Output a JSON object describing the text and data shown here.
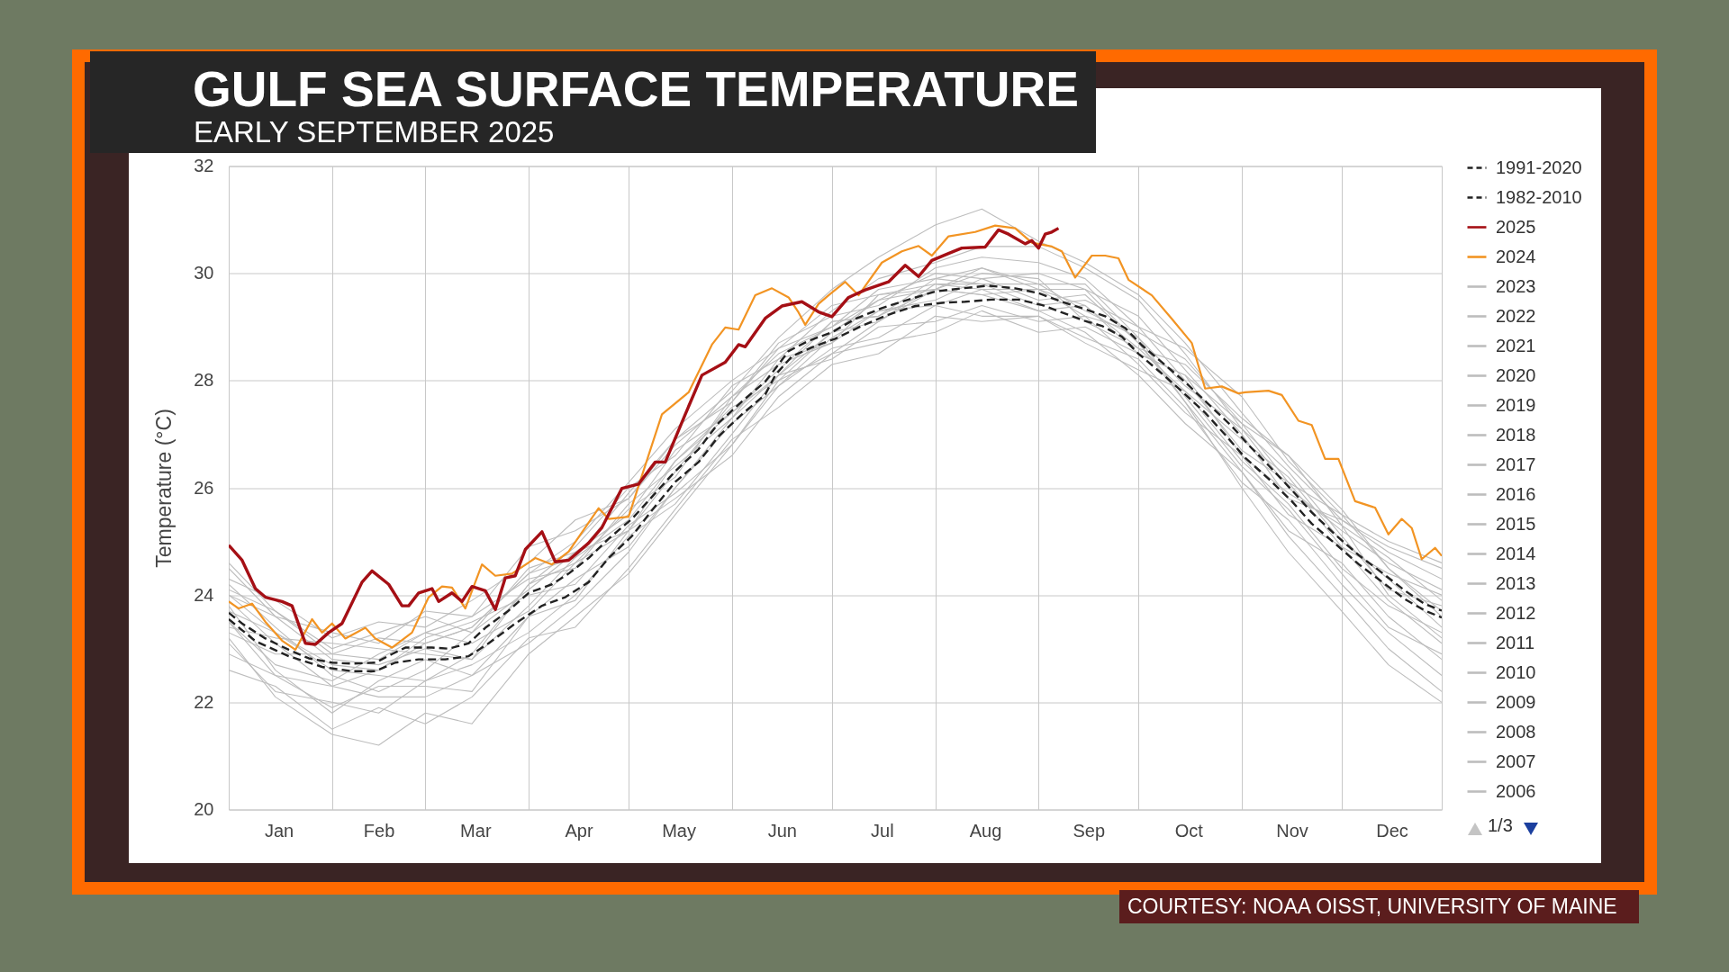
{
  "chart_data": {
    "type": "line",
    "title": "GULF SEA SURFACE TEMPERATURE",
    "subtitle": "EARLY SEPTEMBER 2025",
    "ylabel": "Temperature (°C)",
    "annotations": [
      "1/3",
      "COURTESY: NOAA OISST, UNIVERSITY OF MAINE"
    ],
    "x": [
      "--01-01",
      "--01-15",
      "--02-01",
      "--02-15",
      "--03-01",
      "--03-15",
      "--04-01",
      "--04-15",
      "--05-01",
      "--05-15",
      "--06-01",
      "--06-15",
      "--07-01",
      "--07-15",
      "--08-01",
      "--08-15",
      "--09-01",
      "--09-15",
      "--10-01",
      "--10-15",
      "--11-01",
      "--11-15",
      "--12-01",
      "--12-15",
      "--12-31"
    ],
    "xlim": [
      "--01-01",
      "--12-31"
    ],
    "xticks": [
      {
        "value": "--01-16",
        "label": "Jan"
      },
      {
        "value": "--02-01",
        "label": null
      },
      {
        "value": "--02-15",
        "label": "Feb"
      },
      {
        "value": "--03-01",
        "label": null
      },
      {
        "value": "--03-16",
        "label": "Mar"
      },
      {
        "value": "--04-01",
        "label": null
      },
      {
        "value": "--04-16",
        "label": "Apr"
      },
      {
        "value": "--05-01",
        "label": null
      },
      {
        "value": "--05-16",
        "label": "May"
      },
      {
        "value": "--06-01",
        "label": null
      },
      {
        "value": "--06-16",
        "label": "Jun"
      },
      {
        "value": "--07-01",
        "label": null
      },
      {
        "value": "--07-16",
        "label": "Jul"
      },
      {
        "value": "--08-01",
        "label": null
      },
      {
        "value": "--08-16",
        "label": "Aug"
      },
      {
        "value": "--09-01",
        "label": null
      },
      {
        "value": "--09-16",
        "label": "Sep"
      },
      {
        "value": "--10-01",
        "label": null
      },
      {
        "value": "--10-16",
        "label": "Oct"
      },
      {
        "value": "--11-01",
        "label": null
      },
      {
        "value": "--11-16",
        "label": "Nov"
      },
      {
        "value": "--12-01",
        "label": null
      },
      {
        "value": "--12-16",
        "label": "Dec"
      }
    ],
    "ylim": [
      20,
      32
    ],
    "yticks": [
      20,
      22,
      24,
      26,
      28,
      30,
      32
    ],
    "grid": true,
    "legend": "right",
    "series": [
      {
        "name": "1991-2020",
        "color": "#222222",
        "line_style": "dashed",
        "x": [
          "--01-01",
          "--01-05",
          "--01-12",
          "--01-19",
          "--01-25",
          "--02-01",
          "--02-07",
          "--02-14",
          "--02-19",
          "--02-23",
          "--03-03",
          "--03-08",
          "--03-14",
          "--03-19",
          "--03-26",
          "--04-01",
          "--04-08",
          "--04-13",
          "--04-19",
          "--04-25",
          "--05-02",
          "--05-08",
          "--05-15",
          "--05-22",
          "--05-28",
          "--06-04",
          "--06-11",
          "--06-15",
          "--06-18",
          "--06-24",
          "--07-01",
          "--07-08",
          "--07-16",
          "--07-24",
          "--08-01",
          "--08-09",
          "--08-17",
          "--08-25",
          "--09-01",
          "--09-08",
          "--09-16",
          "--09-21",
          "--09-27",
          "--10-02",
          "--10-09",
          "--10-15",
          "--10-22",
          "--10-29",
          "--11-03",
          "--11-09",
          "--11-16",
          "--11-22",
          "--11-29",
          "--12-06",
          "--12-13",
          "--12-20",
          "--12-26",
          "--12-31"
        ],
        "values": [
          23.67,
          23.47,
          23.19,
          22.98,
          22.82,
          22.74,
          22.72,
          22.74,
          22.9,
          23.02,
          23.02,
          23.0,
          23.1,
          23.39,
          23.71,
          24.04,
          24.2,
          24.4,
          24.69,
          25.05,
          25.42,
          25.83,
          26.31,
          26.72,
          27.21,
          27.61,
          27.98,
          28.3,
          28.55,
          28.74,
          28.9,
          29.15,
          29.35,
          29.51,
          29.66,
          29.72,
          29.77,
          29.72,
          29.63,
          29.47,
          29.31,
          29.2,
          28.98,
          28.66,
          28.29,
          27.97,
          27.56,
          27.15,
          26.8,
          26.42,
          25.96,
          25.54,
          25.13,
          24.75,
          24.42,
          24.08,
          23.83,
          23.71
        ]
      },
      {
        "name": "1982-2010",
        "color": "#222222",
        "line_style": "dashed",
        "x": [
          "--01-01",
          "--01-09",
          "--01-19",
          "--01-29",
          "--02-07",
          "--02-14",
          "--02-20",
          "--02-27",
          "--03-07",
          "--03-14",
          "--03-20",
          "--03-28",
          "--04-05",
          "--04-12",
          "--04-19",
          "--04-25",
          "--05-02",
          "--05-08",
          "--05-15",
          "--05-22",
          "--05-28",
          "--06-04",
          "--06-11",
          "--06-14",
          "--06-19",
          "--06-25",
          "--07-02",
          "--07-10",
          "--07-18",
          "--07-26",
          "--08-03",
          "--08-10",
          "--08-18",
          "--08-26",
          "--09-02",
          "--09-08",
          "--09-15",
          "--09-20",
          "--09-26",
          "--10-01",
          "--10-08",
          "--10-14",
          "--10-21",
          "--10-27",
          "--11-02",
          "--11-09",
          "--11-16",
          "--11-22",
          "--11-29",
          "--12-06",
          "--12-13",
          "--12-20",
          "--12-26",
          "--12-31"
        ],
        "values": [
          23.55,
          23.14,
          22.86,
          22.66,
          22.58,
          22.58,
          22.74,
          22.8,
          22.8,
          22.86,
          23.1,
          23.47,
          23.8,
          23.96,
          24.24,
          24.69,
          25.1,
          25.58,
          26.11,
          26.48,
          26.96,
          27.37,
          27.74,
          28.1,
          28.45,
          28.62,
          28.78,
          29.02,
          29.23,
          29.39,
          29.45,
          29.47,
          29.51,
          29.51,
          29.41,
          29.27,
          29.11,
          29.02,
          28.82,
          28.5,
          28.13,
          27.8,
          27.4,
          26.99,
          26.56,
          26.17,
          25.75,
          25.33,
          24.96,
          24.58,
          24.25,
          23.92,
          23.71,
          23.58
        ]
      },
      {
        "name": "2025",
        "color": "#a50f15",
        "x": [
          "--01-01",
          "--01-05",
          "--01-09",
          "--01-12",
          "--01-17",
          "--01-20",
          "--01-24",
          "--01-27",
          "--01-31",
          "--02-04",
          "--02-10",
          "--02-13",
          "--02-18",
          "--02-22",
          "--02-24",
          "--02-27",
          "--03-03",
          "--03-05",
          "--03-09",
          "--03-12",
          "--03-15",
          "--03-19",
          "--03-22",
          "--03-25",
          "--03-28",
          "--03-31",
          "--04-05",
          "--04-09",
          "--04-13",
          "--04-19",
          "--04-23",
          "--04-29",
          "--05-04",
          "--05-09",
          "--05-12",
          "--05-18",
          "--05-23",
          "--05-30",
          "--06-03",
          "--06-05",
          "--06-11",
          "--06-16",
          "--06-22",
          "--06-27",
          "--07-01",
          "--07-06",
          "--07-11",
          "--07-18",
          "--07-23",
          "--07-27",
          "--07-31",
          "--08-05",
          "--08-09",
          "--08-16",
          "--08-20",
          "--08-23",
          "--08-28",
          "--08-30",
          "--09-01",
          "--09-03",
          "--09-05",
          "--09-07"
        ],
        "values": [
          24.93,
          24.65,
          24.12,
          23.96,
          23.88,
          23.8,
          23.1,
          23.08,
          23.3,
          23.47,
          24.24,
          24.45,
          24.2,
          23.8,
          23.8,
          24.04,
          24.12,
          23.88,
          24.04,
          23.88,
          24.16,
          24.08,
          23.73,
          24.32,
          24.36,
          24.85,
          25.18,
          24.62,
          24.65,
          24.97,
          25.26,
          25.99,
          26.07,
          26.48,
          26.48,
          27.37,
          28.1,
          28.34,
          28.67,
          28.63,
          29.16,
          29.39,
          29.47,
          29.28,
          29.19,
          29.55,
          29.69,
          29.84,
          30.15,
          29.94,
          30.24,
          30.37,
          30.47,
          30.49,
          30.81,
          30.73,
          30.55,
          30.61,
          30.47,
          30.73,
          30.77,
          30.84
        ]
      },
      {
        "name": "2024",
        "color": "#f29423",
        "x": [
          "--01-01",
          "--01-04",
          "--01-08",
          "--01-12",
          "--01-17",
          "--01-21",
          "--01-26",
          "--01-29",
          "--02-01",
          "--02-05",
          "--02-11",
          "--02-14",
          "--02-19",
          "--02-25",
          "--03-02",
          "--03-06",
          "--03-09",
          "--03-13",
          "--03-18",
          "--03-22",
          "--03-27",
          "--04-03",
          "--04-08",
          "--04-13",
          "--04-18",
          "--04-22",
          "--04-25",
          "--05-01",
          "--05-05",
          "--05-11",
          "--05-19",
          "--05-26",
          "--05-30",
          "--06-03",
          "--06-08",
          "--06-13",
          "--06-18",
          "--06-21",
          "--06-23",
          "--06-27",
          "--06-30",
          "--07-05",
          "--07-09",
          "--07-16",
          "--07-22",
          "--07-27",
          "--07-31",
          "--08-05",
          "--08-13",
          "--08-19",
          "--08-25",
          "--08-30",
          "--09-05",
          "--09-08",
          "--09-12",
          "--09-17",
          "--09-21",
          "--09-25",
          "--09-28",
          "--10-05",
          "--10-11",
          "--10-17",
          "--10-21",
          "--10-26",
          "--10-31",
          "--11-02",
          "--11-09",
          "--11-13",
          "--11-18",
          "--11-22",
          "--11-26",
          "--11-30",
          "--12-05",
          "--12-11",
          "--12-15",
          "--12-19",
          "--12-22",
          "--12-25",
          "--12-29",
          "--12-31"
        ],
        "values": [
          23.88,
          23.75,
          23.84,
          23.5,
          23.15,
          22.98,
          23.55,
          23.3,
          23.47,
          23.19,
          23.39,
          23.19,
          23.02,
          23.3,
          23.96,
          24.16,
          24.14,
          23.75,
          24.57,
          24.36,
          24.4,
          24.69,
          24.57,
          24.81,
          25.26,
          25.62,
          25.42,
          25.46,
          26.23,
          27.37,
          27.78,
          28.67,
          28.99,
          28.95,
          29.59,
          29.72,
          29.55,
          29.27,
          29.04,
          29.43,
          29.59,
          29.84,
          29.59,
          30.2,
          30.41,
          30.51,
          30.33,
          30.69,
          30.77,
          30.89,
          30.84,
          30.57,
          30.5,
          30.41,
          29.92,
          30.33,
          30.33,
          30.28,
          29.88,
          29.59,
          29.15,
          28.7,
          27.85,
          27.89,
          27.76,
          27.78,
          27.81,
          27.73,
          27.25,
          27.17,
          26.54,
          26.54,
          25.75,
          25.63,
          25.13,
          25.42,
          25.25,
          24.67,
          24.88,
          24.73
        ]
      },
      {
        "name": "2023",
        "color": "#bdbdbd",
        "values": [
          24.0,
          23.3,
          22.7,
          22.6,
          23.1,
          23.4,
          24.4,
          24.7,
          25.9,
          26.9,
          27.8,
          28.8,
          29.7,
          30.3,
          30.9,
          31.2,
          30.6,
          30.2,
          29.6,
          28.7,
          27.4,
          26.4,
          25.4,
          24.8,
          24.3
        ]
      },
      {
        "name": "2022",
        "color": "#bdbdbd",
        "values": [
          23.5,
          22.7,
          22.4,
          22.9,
          23.3,
          23.1,
          23.7,
          24.6,
          25.6,
          26.2,
          27.7,
          28.5,
          29.0,
          29.7,
          29.9,
          30.1,
          29.7,
          29.2,
          28.9,
          28.4,
          27.2,
          26.6,
          25.3,
          24.0,
          23.2
        ]
      },
      {
        "name": "2021",
        "color": "#bdbdbd",
        "values": [
          24.2,
          23.4,
          22.5,
          22.2,
          22.6,
          23.3,
          24.5,
          24.8,
          25.2,
          26.5,
          27.5,
          28.0,
          28.9,
          29.5,
          30.0,
          29.9,
          30.0,
          29.7,
          29.2,
          28.2,
          27.0,
          25.8,
          25.4,
          24.9,
          24.5
        ]
      },
      {
        "name": "2020",
        "color": "#bdbdbd",
        "values": [
          24.3,
          23.9,
          23.2,
          23.5,
          23.4,
          23.9,
          24.6,
          25.4,
          25.8,
          26.9,
          27.6,
          28.7,
          29.2,
          29.4,
          30.1,
          30.3,
          30.2,
          29.9,
          29.0,
          28.6,
          27.7,
          26.5,
          25.5,
          25.0,
          24.6
        ]
      },
      {
        "name": "2019",
        "color": "#bdbdbd",
        "values": [
          23.4,
          23.2,
          23.1,
          23.0,
          22.9,
          22.8,
          24.2,
          24.9,
          26.0,
          26.6,
          27.9,
          28.4,
          29.3,
          29.9,
          30.2,
          30.5,
          30.5,
          30.1,
          29.5,
          28.5,
          27.1,
          26.3,
          25.1,
          24.1,
          23.8
        ]
      },
      {
        "name": "2018",
        "color": "#bdbdbd",
        "values": [
          23.8,
          22.6,
          21.8,
          22.4,
          22.8,
          22.5,
          23.6,
          24.3,
          24.9,
          26.0,
          27.2,
          27.9,
          28.8,
          29.3,
          29.5,
          29.9,
          29.5,
          29.6,
          28.7,
          27.7,
          26.4,
          25.6,
          24.4,
          23.4,
          22.9
        ]
      },
      {
        "name": "2017",
        "color": "#bdbdbd",
        "values": [
          24.1,
          23.7,
          23.0,
          23.3,
          23.6,
          23.3,
          24.1,
          24.8,
          25.5,
          26.7,
          27.4,
          28.1,
          29.1,
          29.2,
          29.7,
          30.0,
          29.9,
          29.1,
          28.6,
          28.3,
          27.3,
          26.6,
          25.6,
          24.5,
          23.6
        ]
      },
      {
        "name": "2016",
        "color": "#bdbdbd",
        "values": [
          23.3,
          22.9,
          22.9,
          22.8,
          23.3,
          23.6,
          24.3,
          24.5,
          25.7,
          26.4,
          27.3,
          28.4,
          28.7,
          29.6,
          29.8,
          29.8,
          29.8,
          29.8,
          28.8,
          27.9,
          27.1,
          26.0,
          25.2,
          24.6,
          24.1
        ]
      },
      {
        "name": "2015",
        "color": "#bdbdbd",
        "values": [
          23.1,
          22.2,
          22.0,
          21.8,
          22.4,
          22.7,
          23.3,
          24.0,
          25.1,
          25.7,
          27.0,
          28.1,
          28.4,
          29.0,
          29.1,
          29.4,
          29.1,
          29.2,
          28.3,
          27.4,
          26.6,
          25.5,
          24.9,
          23.9,
          23.1
        ]
      },
      {
        "name": "2014",
        "color": "#bdbdbd",
        "values": [
          22.6,
          22.3,
          21.5,
          21.9,
          21.6,
          22.1,
          23.2,
          23.4,
          24.5,
          25.6,
          26.9,
          27.5,
          28.3,
          28.5,
          29.2,
          29.1,
          29.2,
          28.8,
          28.4,
          27.5,
          26.1,
          25.4,
          24.2,
          23.3,
          22.5
        ]
      },
      {
        "name": "2013",
        "color": "#bdbdbd",
        "values": [
          23.9,
          23.1,
          22.3,
          22.6,
          23.2,
          23.5,
          24.0,
          24.2,
          25.3,
          25.9,
          26.8,
          27.9,
          28.6,
          28.8,
          29.4,
          29.2,
          29.2,
          28.7,
          28.2,
          27.8,
          26.9,
          26.2,
          25.0,
          24.3,
          23.4
        ]
      },
      {
        "name": "2012",
        "color": "#bdbdbd",
        "values": [
          24.5,
          23.6,
          23.3,
          23.1,
          23.7,
          23.6,
          24.9,
          25.2,
          25.8,
          26.8,
          27.7,
          28.3,
          28.7,
          29.3,
          29.4,
          29.7,
          29.7,
          29.4,
          28.5,
          28.1,
          26.6,
          25.9,
          25.3,
          24.7,
          23.9
        ]
      },
      {
        "name": "2011",
        "color": "#bdbdbd",
        "values": [
          23.5,
          22.5,
          21.9,
          22.3,
          22.3,
          22.2,
          23.6,
          23.9,
          25.2,
          26.3,
          27.6,
          28.6,
          29.0,
          29.5,
          29.7,
          30.1,
          29.8,
          29.3,
          28.8,
          27.6,
          26.3,
          25.2,
          24.6,
          23.6,
          22.8
        ]
      },
      {
        "name": "2010",
        "color": "#bdbdbd",
        "values": [
          23.2,
          22.1,
          21.4,
          21.2,
          21.8,
          21.6,
          22.9,
          23.6,
          24.4,
          25.5,
          26.8,
          28.0,
          28.5,
          29.1,
          29.7,
          29.6,
          29.7,
          29.7,
          28.7,
          27.6,
          26.0,
          24.8,
          23.7,
          22.7,
          22.0
        ]
      },
      {
        "name": "2009",
        "color": "#bdbdbd",
        "values": [
          23.7,
          23.3,
          22.6,
          22.5,
          22.4,
          22.9,
          24.2,
          24.6,
          25.2,
          25.8,
          26.6,
          27.7,
          28.5,
          28.7,
          28.9,
          29.3,
          28.9,
          29.0,
          28.5,
          28.1,
          27.2,
          26.1,
          25.5,
          24.5,
          23.7
        ]
      },
      {
        "name": "2008",
        "color": "#bdbdbd",
        "values": [
          22.9,
          22.5,
          22.3,
          22.1,
          22.1,
          22.5,
          23.1,
          23.8,
          24.8,
          26.0,
          27.3,
          28.1,
          28.9,
          29.1,
          29.8,
          29.7,
          29.3,
          29.4,
          28.6,
          27.8,
          26.5,
          25.7,
          24.5,
          23.8,
          23.3
        ]
      },
      {
        "name": "2007",
        "color": "#bdbdbd",
        "values": [
          24.0,
          23.6,
          22.8,
          22.7,
          23.0,
          22.8,
          23.8,
          24.7,
          25.4,
          26.5,
          27.4,
          28.2,
          29.1,
          29.2,
          29.9,
          29.8,
          29.4,
          29.5,
          29.0,
          28.0,
          26.7,
          26.1,
          24.9,
          24.4,
          24.0
        ]
      },
      {
        "name": "2006",
        "color": "#bdbdbd",
        "values": [
          24.6,
          23.7,
          22.9,
          23.2,
          23.1,
          23.4,
          24.4,
          25.0,
          26.1,
          27.1,
          28.0,
          28.6,
          29.4,
          29.6,
          29.7,
          29.6,
          29.3,
          28.9,
          28.1,
          27.2,
          26.3,
          25.1,
          24.0,
          23.0,
          22.2
        ]
      }
    ]
  }
}
